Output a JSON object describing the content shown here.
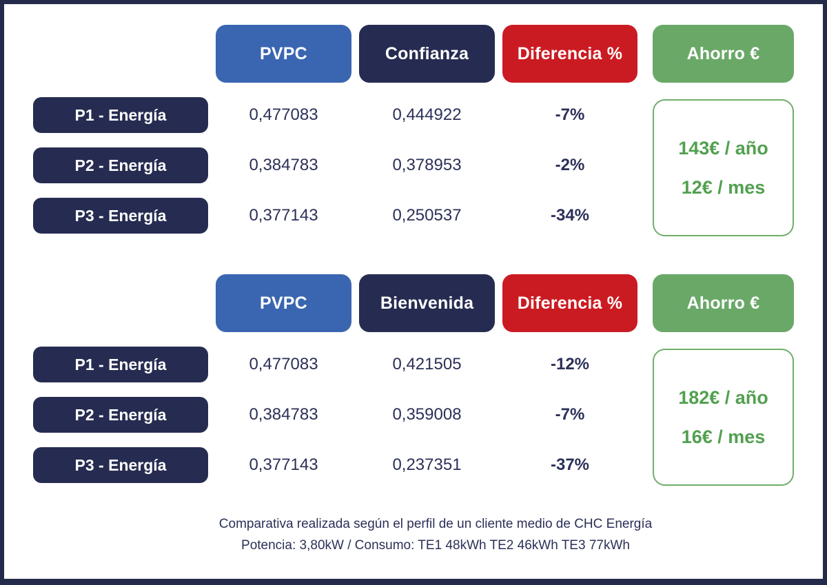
{
  "colors": {
    "navy": "#262c51",
    "blue": "#3a66b1",
    "red": "#cb1b22",
    "green": "#6aa868",
    "green_text": "#52a04f",
    "green_border": "#6fae6a",
    "text": "#2b3058",
    "border": "#242b4a"
  },
  "tables": [
    {
      "headers": {
        "pvpc": "PVPC",
        "plan": "Confianza",
        "diff": "Diferencia %",
        "ahorro": "Ahorro €"
      },
      "rows": [
        {
          "label": "P1 - Energía",
          "pvpc": "0,477083",
          "plan": "0,444922",
          "diff": "-7%"
        },
        {
          "label": "P2 - Energía",
          "pvpc": "0,384783",
          "plan": "0,378953",
          "diff": "-2%"
        },
        {
          "label": "P3 - Energía",
          "pvpc": "0,377143",
          "plan": "0,250537",
          "diff": "-34%"
        }
      ],
      "savings": {
        "year": "143€ / año",
        "month": "12€ / mes"
      }
    },
    {
      "headers": {
        "pvpc": "PVPC",
        "plan": "Bienvenida",
        "diff": "Diferencia %",
        "ahorro": "Ahorro €"
      },
      "rows": [
        {
          "label": "P1 - Energía",
          "pvpc": "0,477083",
          "plan": "0,421505",
          "diff": "-12%"
        },
        {
          "label": "P2 - Energía",
          "pvpc": "0,384783",
          "plan": "0,359008",
          "diff": "-7%"
        },
        {
          "label": "P3 - Energía",
          "pvpc": "0,377143",
          "plan": "0,237351",
          "diff": "-37%"
        }
      ],
      "savings": {
        "year": "182€ / año",
        "month": "16€ / mes"
      }
    }
  ],
  "footer": {
    "line1": "Comparativa realizada según el perfil de un cliente medio de CHC Energía",
    "line2": "Potencia: 3,80kW / Consumo: TE1 48kWh TE2 46kWh TE3 77kWh"
  },
  "chart_data": [
    {
      "type": "table",
      "columns": [
        "PVPC",
        "Confianza",
        "Diferencia %",
        "Ahorro €"
      ],
      "row_labels": [
        "P1 - Energía",
        "P2 - Energía",
        "P3 - Energía"
      ],
      "pvpc": [
        0.477083,
        0.384783,
        0.377143
      ],
      "plan": [
        0.444922,
        0.378953,
        0.250537
      ],
      "diff_pct": [
        -7,
        -2,
        -34
      ],
      "ahorro": {
        "per_year_eur": 143,
        "per_month_eur": 12
      }
    },
    {
      "type": "table",
      "columns": [
        "PVPC",
        "Bienvenida",
        "Diferencia %",
        "Ahorro €"
      ],
      "row_labels": [
        "P1 - Energía",
        "P2 - Energía",
        "P3 - Energía"
      ],
      "pvpc": [
        0.477083,
        0.384783,
        0.377143
      ],
      "plan": [
        0.421505,
        0.359008,
        0.237351
      ],
      "diff_pct": [
        -12,
        -7,
        -37
      ],
      "ahorro": {
        "per_year_eur": 182,
        "per_month_eur": 16
      }
    }
  ]
}
